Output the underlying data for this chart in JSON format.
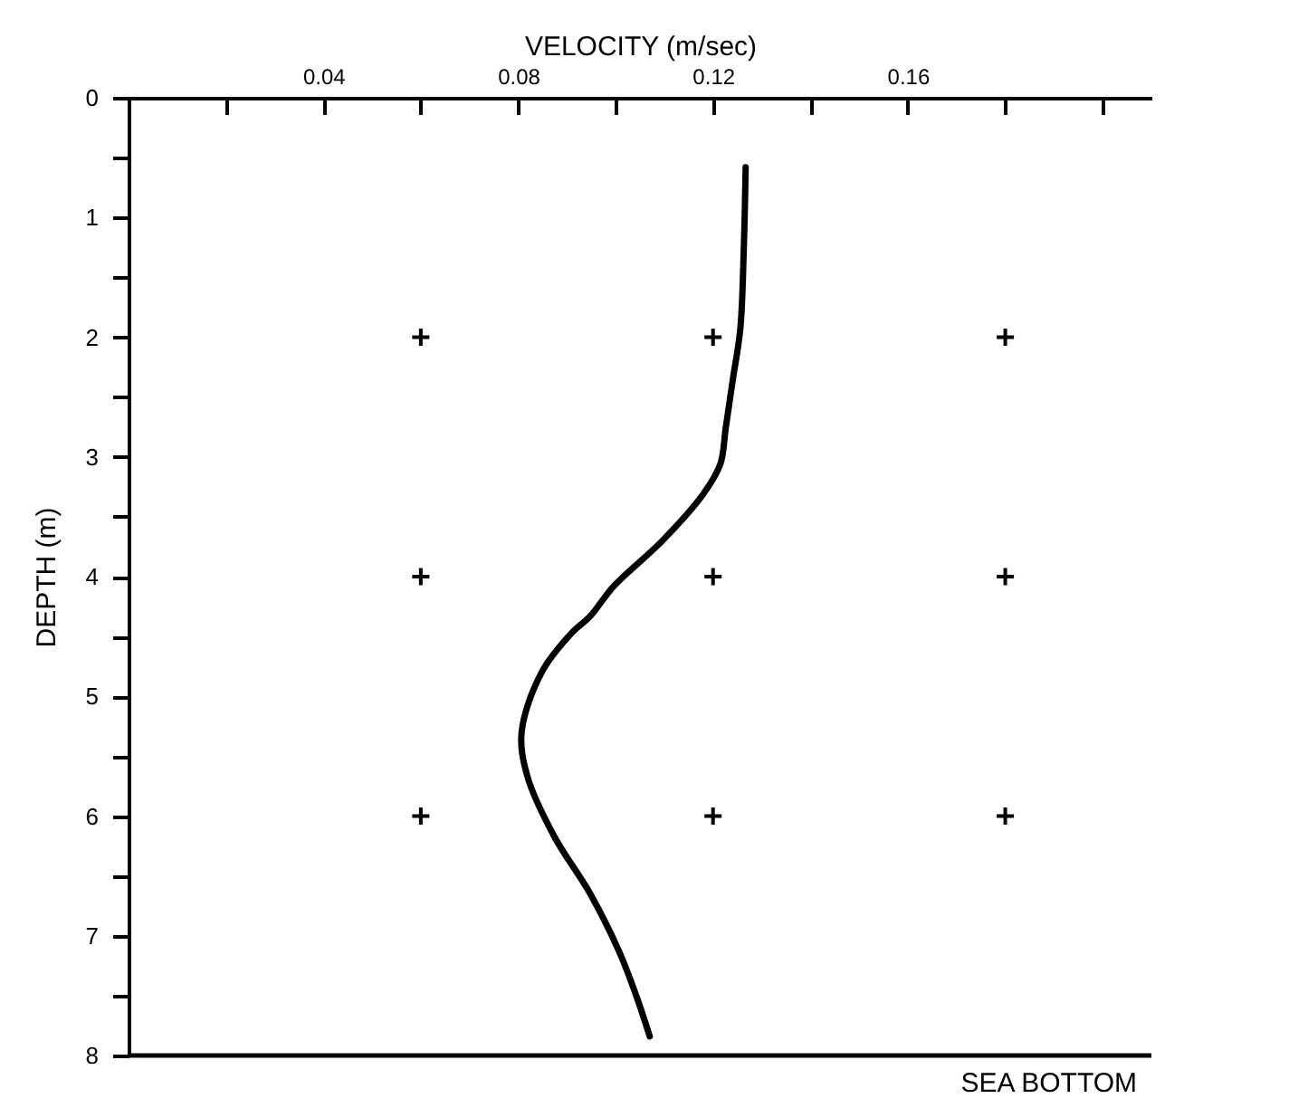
{
  "chart_data": {
    "type": "line",
    "xlabel": "VELOCITY (m/sec)",
    "ylabel": "DEPTH (m)",
    "xlim": [
      0,
      0.21
    ],
    "ylim": [
      8,
      0
    ],
    "xticks": [
      {
        "value": 0.02,
        "label": null
      },
      0.04,
      {
        "value": 0.06,
        "label": null
      },
      0.08,
      {
        "value": 0.1,
        "label": null
      },
      0.12,
      {
        "value": 0.14,
        "label": null
      },
      0.16,
      {
        "value": 0.18,
        "label": null
      },
      {
        "value": 0.2,
        "label": null
      }
    ],
    "yticks": [
      0,
      {
        "value": 0.5,
        "label": null
      },
      1,
      {
        "value": 1.5,
        "label": null
      },
      2,
      {
        "value": 2.5,
        "label": null
      },
      3,
      {
        "value": 3.5,
        "label": null
      },
      4,
      {
        "value": 4.5,
        "label": null
      },
      5,
      {
        "value": 5.5,
        "label": null
      },
      6,
      {
        "value": 6.5,
        "label": null
      },
      7,
      {
        "value": 7.5,
        "label": null
      },
      8
    ],
    "series": [
      {
        "color": "#000000",
        "x": [
          0.1267,
          0.1263,
          0.1256,
          0.124,
          0.1226,
          0.1215,
          0.118,
          0.1096,
          0.0996,
          0.0948,
          0.091,
          0.0848,
          0.0807,
          0.0819,
          0.0874,
          0.0948,
          0.1007,
          0.1044,
          0.107
        ],
        "values": [
          0.58,
          1.28,
          1.93,
          2.37,
          2.76,
          3.06,
          3.31,
          3.7,
          4.08,
          4.33,
          4.47,
          4.8,
          5.3,
          5.67,
          6.17,
          6.65,
          7.13,
          7.52,
          7.84
        ],
        "line_style": "solid",
        "marker": "none"
      },
      {
        "type": "scatter",
        "color": "#000000",
        "marker": "cross",
        "x": [
          0.06,
          0.12,
          0.18,
          0.06,
          0.12,
          0.18,
          0.06,
          0.12,
          0.18
        ],
        "values": [
          2,
          2,
          2,
          4,
          4,
          4,
          6,
          6,
          6
        ]
      }
    ],
    "ref_lines": [
      {
        "axis": "y",
        "value": 8,
        "label": "SEA BOTTOM",
        "color": "#000000"
      }
    ],
    "grid": false
  }
}
